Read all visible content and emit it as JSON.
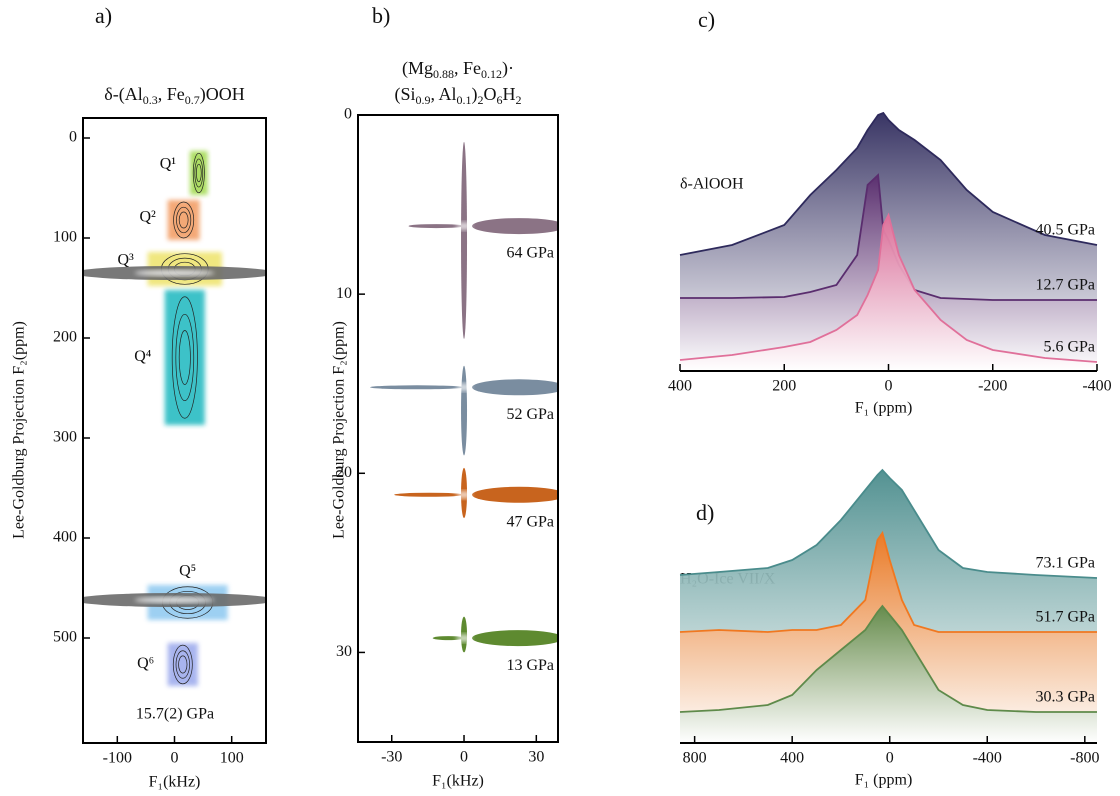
{
  "chart_data": [
    {
      "type": "contour",
      "label": "a)",
      "title_lines": [
        [
          {
            "text": "δ-(Al"
          },
          {
            "sub": "0.3"
          },
          {
            "text": ", Fe"
          },
          {
            "sub": "0.7"
          },
          {
            "text": ")OOH"
          }
        ]
      ],
      "xlabel": "F₁(kHz)",
      "ylabel": "Lee-Goldburg Projection F₂(ppm)",
      "xlim": [
        -160,
        160
      ],
      "xticks": [
        -100,
        0,
        100
      ],
      "ylim": [
        -20,
        605
      ],
      "yticks": [
        0,
        100,
        200,
        300,
        400,
        500
      ],
      "annotation": "15.7(2) GPa",
      "regions": [
        {
          "label": "Q¹",
          "color": "#9fd84a",
          "x": [
            27,
            58
          ],
          "y": [
            13,
            57
          ]
        },
        {
          "label": "Q²",
          "color": "#f29a5e",
          "x": [
            -12,
            44
          ],
          "y": [
            62,
            102
          ]
        },
        {
          "label": "Q³",
          "color": "#eee36a",
          "x": [
            -47,
            83
          ],
          "y": [
            114,
            148
          ]
        },
        {
          "label": "Q⁴",
          "color": "#1fb8bf",
          "x": [
            -17,
            53
          ],
          "y": [
            152,
            287
          ]
        },
        {
          "label": "Q⁵",
          "color": "#8cc8f0",
          "x": [
            -47,
            93
          ],
          "y": [
            447,
            482
          ]
        },
        {
          "label": "Q⁶",
          "color": "#9aa8ec",
          "x": [
            -12,
            41
          ],
          "y": [
            505,
            548
          ]
        }
      ],
      "ridges": [
        {
          "y": 135,
          "color": "#6a6a6a"
        },
        {
          "y": 462,
          "color": "#6a6a6a"
        }
      ]
    },
    {
      "type": "contour",
      "label": "b)",
      "title_lines": [
        [
          {
            "text": "(Mg"
          },
          {
            "sub": "0.88"
          },
          {
            "text": ", Fe"
          },
          {
            "sub": "0.12"
          },
          {
            "text": ")·"
          }
        ],
        [
          {
            "text": "(Si"
          },
          {
            "sub": "0.9"
          },
          {
            "text": ", Al"
          },
          {
            "sub": "0.1"
          },
          {
            "text": ")"
          },
          {
            "sub": "2"
          },
          {
            "text": "O"
          },
          {
            "sub": "6"
          },
          {
            "text": "H"
          },
          {
            "sub": "2"
          }
        ]
      ],
      "xlabel": "F₁(kHz)",
      "ylabel": "Lee-Goldburg Projection F₂(ppm)",
      "xlim": [
        -44,
        39
      ],
      "xticks": [
        -30,
        0,
        30
      ],
      "ylim": [
        0,
        35
      ],
      "yticks": [
        0,
        10,
        20,
        30
      ],
      "signals": [
        {
          "label": "64 GPa",
          "color": "#8b7385",
          "y": 6.2,
          "x": [
            -23,
            39
          ],
          "y_span": [
            1.5,
            12.5
          ]
        },
        {
          "label": "52 GPa",
          "color": "#7a8da0",
          "y": 15.2,
          "x": [
            -39,
            39
          ],
          "y_span": [
            14,
            19
          ]
        },
        {
          "label": "47 GPa",
          "color": "#c8641e",
          "y": 21.2,
          "x": [
            -29,
            39
          ],
          "y_span": [
            19.7,
            22.5
          ]
        },
        {
          "label": "13 GPa",
          "color": "#5e8a30",
          "y": 29.2,
          "x": [
            -13,
            38
          ],
          "y_span": [
            28,
            30
          ]
        }
      ]
    },
    {
      "type": "area",
      "label": "c)",
      "annotation": "δ-AlOOH",
      "xlabel": "F₁ (ppm)",
      "xlim": [
        400,
        -400
      ],
      "xticks": [
        400,
        200,
        0,
        -200,
        -400
      ],
      "x": [
        400,
        300,
        200,
        150,
        100,
        60,
        40,
        20,
        10,
        0,
        -20,
        -50,
        -100,
        -150,
        -200,
        -300,
        -400
      ],
      "series": [
        {
          "name": "40.5 GPa",
          "color": "#2e2a5c",
          "values": [
            125,
            135,
            155,
            185,
            210,
            232,
            250,
            265,
            267,
            260,
            250,
            240,
            220,
            190,
            168,
            145,
            135
          ]
        },
        {
          "name": "12.7 GPa",
          "color": "#5a2d6e",
          "values": [
            82,
            82,
            83,
            88,
            95,
            125,
            195,
            205,
            150,
            140,
            115,
            90,
            82,
            81,
            80,
            80,
            80
          ]
        },
        {
          "name": "5.6 GPa",
          "color": "#e0709a",
          "values": [
            20,
            25,
            33,
            38,
            50,
            65,
            85,
            110,
            155,
            165,
            125,
            90,
            60,
            40,
            30,
            22,
            18
          ]
        }
      ]
    },
    {
      "type": "area",
      "label": "d)",
      "annotation": "H₂O-Ice VII/X",
      "xlabel": "F₁ (ppm)",
      "xlim": [
        860,
        -850
      ],
      "xticks": [
        800,
        400,
        0,
        -400,
        -800
      ],
      "x": [
        860,
        700,
        500,
        400,
        300,
        200,
        100,
        50,
        30,
        0,
        -50,
        -100,
        -200,
        -300,
        -400,
        -600,
        -850
      ],
      "series": [
        {
          "name": "73.1 GPa",
          "color": "#4a8c8c",
          "values": [
            185,
            188,
            192,
            200,
            215,
            240,
            270,
            285,
            290,
            282,
            270,
            250,
            210,
            192,
            188,
            185,
            182
          ]
        },
        {
          "name": "51.7 GPa",
          "color": "#f07820",
          "values": [
            128,
            130,
            128,
            130,
            130,
            135,
            160,
            220,
            227,
            200,
            160,
            135,
            128,
            128,
            128,
            128,
            128
          ]
        },
        {
          "name": "30.3 GPa",
          "color": "#5e8a4a",
          "values": [
            48,
            50,
            55,
            65,
            90,
            110,
            130,
            148,
            154,
            145,
            130,
            110,
            70,
            55,
            50,
            48,
            48
          ]
        }
      ]
    }
  ]
}
